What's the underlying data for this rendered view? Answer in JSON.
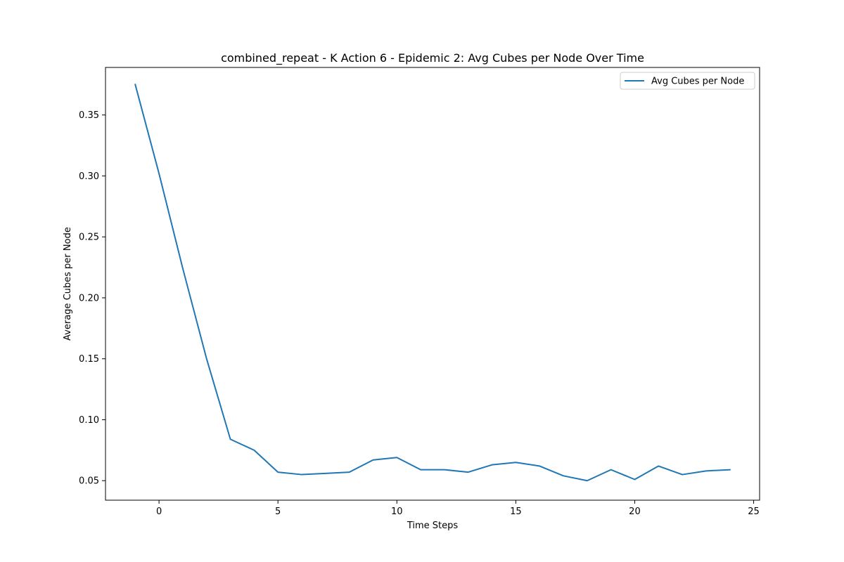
{
  "chart_data": {
    "type": "line",
    "title": "combined_repeat - K Action 6 - Epidemic 2: Avg Cubes per Node Over Time",
    "xlabel": "Time Steps",
    "ylabel": "Average Cubes per Node",
    "xlim": [
      -2.25,
      25.25
    ],
    "ylim": [
      0.034,
      0.389
    ],
    "xticks": [
      0,
      5,
      10,
      15,
      20,
      25
    ],
    "yticks": [
      0.05,
      0.1,
      0.15,
      0.2,
      0.25,
      0.3,
      0.35
    ],
    "x_tick_labels": [
      "0",
      "5",
      "10",
      "15",
      "20",
      "25"
    ],
    "y_tick_labels": [
      "0.05",
      "0.10",
      "0.15",
      "0.20",
      "0.25",
      "0.30",
      "0.35"
    ],
    "grid": false,
    "legend_position": "top-right",
    "series": [
      {
        "name": "Avg Cubes per Node",
        "color": "#1f77b4",
        "x": [
          -1,
          0,
          1,
          2,
          3,
          4,
          5,
          6,
          7,
          8,
          9,
          10,
          11,
          12,
          13,
          14,
          15,
          16,
          17,
          18,
          19,
          20,
          21,
          22,
          23,
          24
        ],
        "y": [
          0.375,
          0.302,
          0.224,
          0.15,
          0.084,
          0.075,
          0.057,
          0.055,
          0.056,
          0.057,
          0.067,
          0.069,
          0.059,
          0.059,
          0.057,
          0.063,
          0.065,
          0.062,
          0.054,
          0.05,
          0.059,
          0.051,
          0.062,
          0.055,
          0.058,
          0.059
        ]
      }
    ]
  }
}
